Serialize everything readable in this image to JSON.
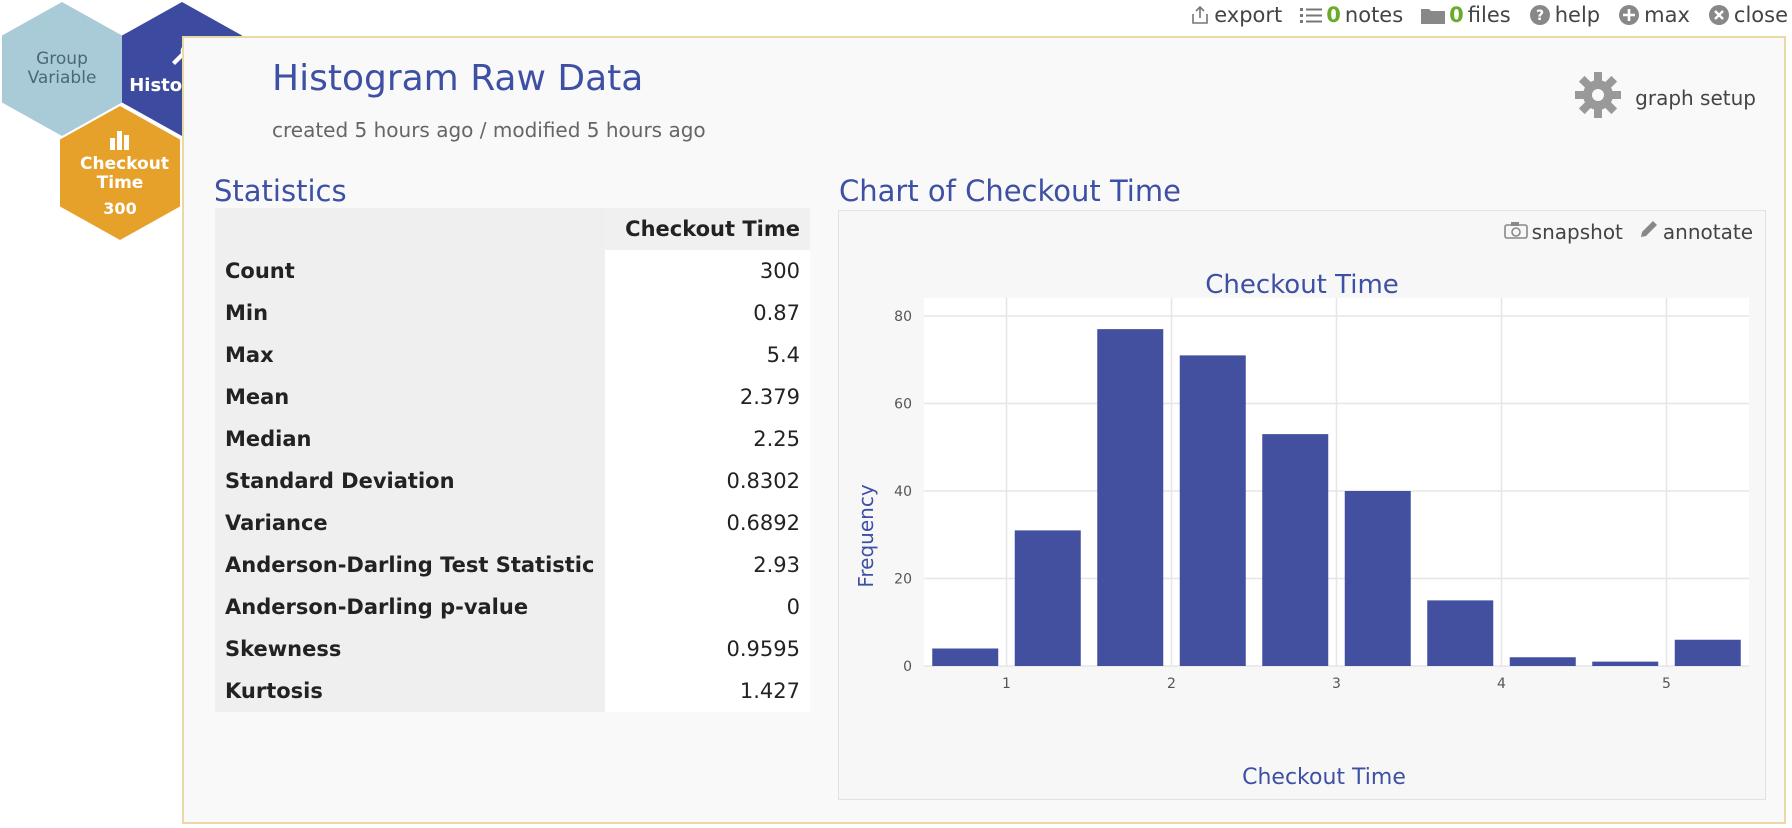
{
  "toolbar": {
    "export": "export",
    "notes_count": "0",
    "notes": "notes",
    "files_count": "0",
    "files": "files",
    "help": "help",
    "max": "max",
    "close": "close"
  },
  "hexnav": {
    "group_variable": "Group Variable",
    "histogram": "Histogram",
    "checkout_time": "Checkout Time",
    "count": "300"
  },
  "page": {
    "title": "Histogram Raw Data",
    "meta": "created 5 hours ago / modified 5 hours ago",
    "graph_setup": "graph setup"
  },
  "statistics": {
    "title": "Statistics",
    "column_header": "Checkout Time",
    "rows": [
      {
        "label": "Count",
        "value": "300"
      },
      {
        "label": "Min",
        "value": "0.87"
      },
      {
        "label": "Max",
        "value": "5.4"
      },
      {
        "label": "Mean",
        "value": "2.379"
      },
      {
        "label": "Median",
        "value": "2.25"
      },
      {
        "label": "Standard Deviation",
        "value": "0.8302"
      },
      {
        "label": "Variance",
        "value": "0.6892"
      },
      {
        "label": "Anderson-Darling Test Statistic",
        "value": "2.93"
      },
      {
        "label": "Anderson-Darling p-value",
        "value": "0"
      },
      {
        "label": "Skewness",
        "value": "0.9595"
      },
      {
        "label": "Kurtosis",
        "value": "1.427"
      }
    ]
  },
  "chart_panel": {
    "heading": "Chart of Checkout Time",
    "snapshot": "snapshot",
    "annotate": "annotate"
  },
  "chart_data": {
    "type": "bar",
    "title": "Checkout Time",
    "xlabel": "Checkout Time",
    "ylabel": "Frequency",
    "x": [
      0.75,
      1.25,
      1.75,
      2.25,
      2.75,
      3.25,
      3.75,
      4.25,
      4.75,
      5.25
    ],
    "bin_width": 0.5,
    "values": [
      4,
      31,
      77,
      71,
      53,
      40,
      15,
      2,
      1,
      6
    ],
    "xlim": [
      0.5,
      5.5
    ],
    "ylim": [
      0,
      80
    ],
    "xticks": [
      1,
      2,
      3,
      4,
      5
    ],
    "yticks": [
      0,
      20,
      40,
      60,
      80
    ],
    "grid": true,
    "bar_color": "#434f9f",
    "title_color": "#3d50a3"
  }
}
